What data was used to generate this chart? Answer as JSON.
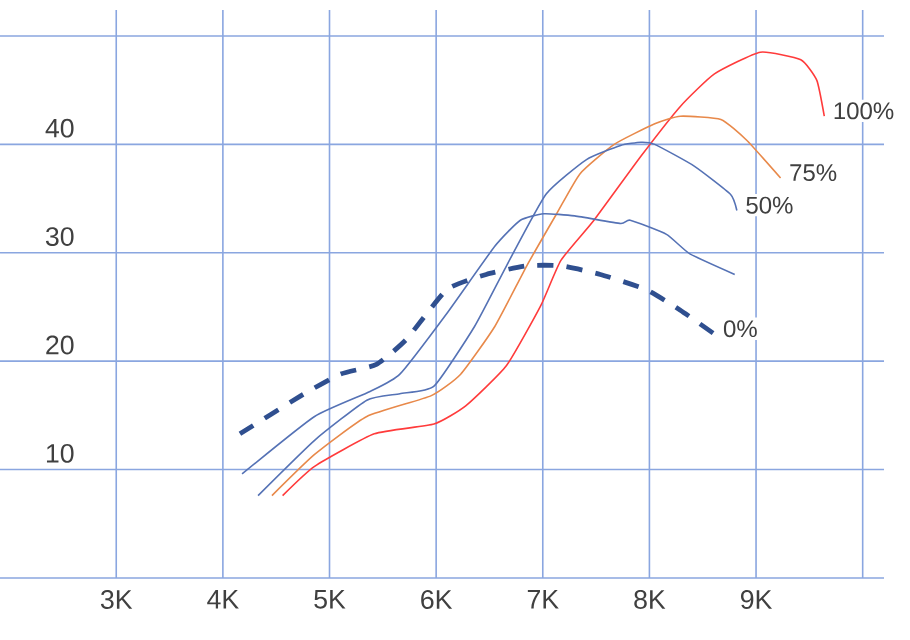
{
  "chart_data": {
    "type": "line",
    "xlim": [
      1.91,
      10.2
    ],
    "ylim": [
      0,
      52.4
    ],
    "xticks": [
      {
        "value": 3,
        "label": "3K"
      },
      {
        "value": 4,
        "label": "4K"
      },
      {
        "value": 5,
        "label": "5K"
      },
      {
        "value": 6,
        "label": "6K"
      },
      {
        "value": 7,
        "label": "7K"
      },
      {
        "value": 8,
        "label": "8K"
      },
      {
        "value": 9,
        "label": "9K"
      },
      {
        "value": 10,
        "label": null
      }
    ],
    "yticks": [
      {
        "value": 0,
        "label": null
      },
      10,
      20,
      30,
      40,
      {
        "value": 50,
        "label": null
      }
    ],
    "grid": true,
    "legend": false,
    "marker": "none",
    "series": [
      {
        "name": "100%",
        "color": "#ff3b3b",
        "line_style": "solid",
        "x": [
          4.56,
          4.86,
          5.42,
          5.98,
          6.28,
          6.66,
          6.98,
          7.17,
          7.48,
          7.92,
          8.29,
          8.61,
          9.04,
          9.42,
          9.57,
          9.64
        ],
        "values": [
          7.6,
          10.3,
          13.3,
          14.2,
          15.9,
          19.6,
          25.1,
          29.3,
          33.0,
          38.9,
          43.5,
          46.5,
          48.5,
          47.8,
          45.9,
          42.6
        ]
      },
      {
        "name": "75%",
        "color": "#e8894a",
        "line_style": "solid",
        "x": [
          4.46,
          4.86,
          5.35,
          5.95,
          6.23,
          6.55,
          6.85,
          7.13,
          7.35,
          7.67,
          8.05,
          8.29,
          8.67,
          8.91,
          9.23
        ],
        "values": [
          7.6,
          11.4,
          14.9,
          16.8,
          18.8,
          23.2,
          28.8,
          33.6,
          37.3,
          40.0,
          41.9,
          42.6,
          42.3,
          40.4,
          36.9
        ]
      },
      {
        "name": "50%",
        "color": "#5572b5",
        "line_style": "solid",
        "x": [
          4.33,
          4.86,
          5.35,
          5.66,
          5.98,
          6.36,
          6.66,
          7.03,
          7.41,
          7.73,
          7.92,
          8.05,
          8.42,
          8.76,
          8.82
        ],
        "values": [
          7.6,
          12.7,
          16.4,
          17.0,
          17.7,
          23.2,
          28.8,
          35.4,
          38.6,
          39.9,
          40.2,
          40.0,
          38.0,
          35.4,
          33.9
        ]
      },
      {
        "color": "#5572b5",
        "line_style": "solid",
        "x": [
          4.18,
          4.86,
          5.38,
          5.66,
          6.1,
          6.55,
          6.79,
          7.01,
          7.3,
          7.73,
          7.82,
          8.16,
          8.38,
          8.8
        ],
        "values": [
          9.6,
          14.9,
          17.2,
          18.8,
          24.4,
          30.6,
          33.0,
          33.6,
          33.4,
          32.7,
          33.0,
          31.7,
          29.9,
          28.0
        ]
      },
      {
        "name": "0%",
        "color": "#2f4f8f",
        "line_style": "dashed",
        "x": [
          4.16,
          4.73,
          5.1,
          5.44,
          5.72,
          6.1,
          6.47,
          6.85,
          7.17,
          7.54,
          7.97,
          8.29,
          8.61
        ],
        "values": [
          13.3,
          16.8,
          18.8,
          19.7,
          22.0,
          26.6,
          28.0,
          28.8,
          28.8,
          28.0,
          26.6,
          24.7,
          22.5
        ]
      }
    ]
  }
}
